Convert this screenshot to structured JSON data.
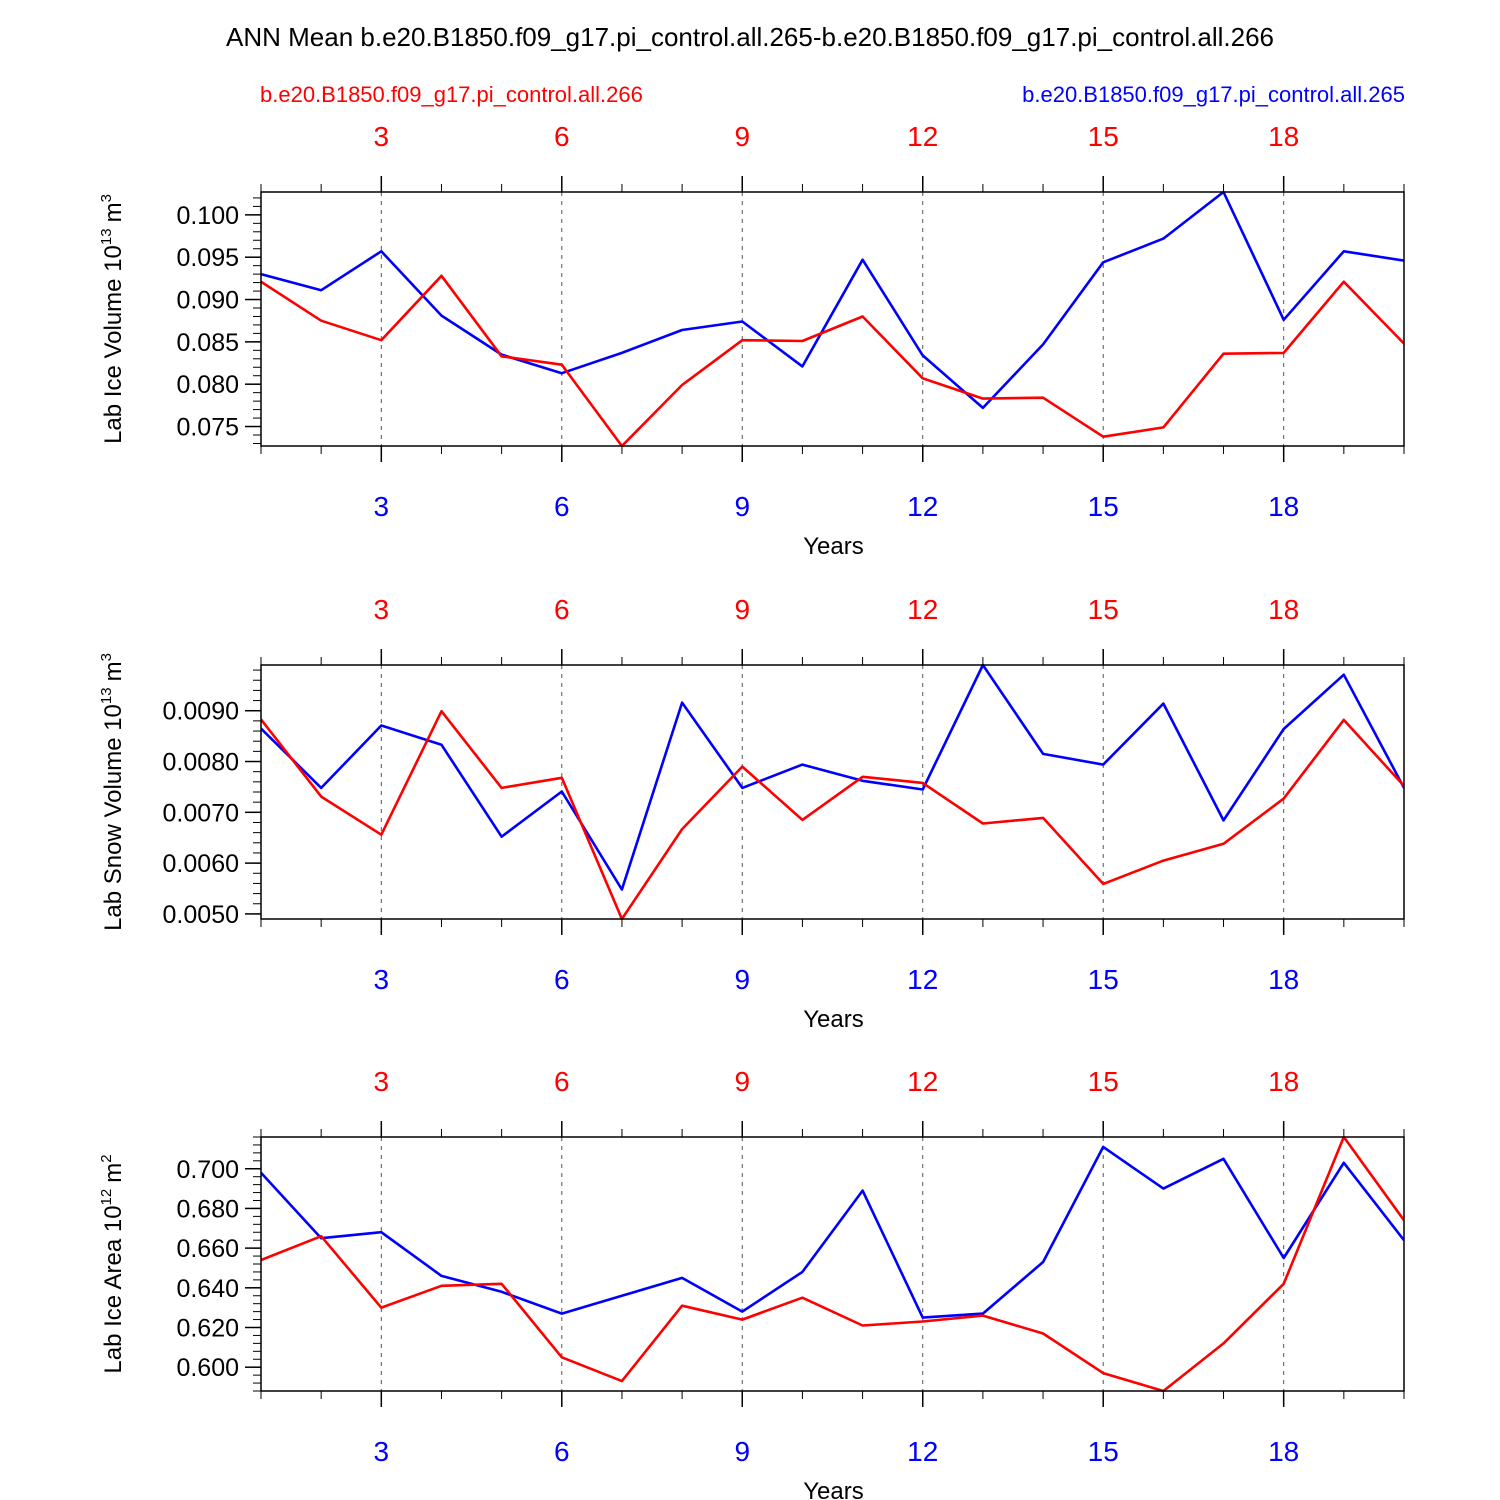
{
  "figure": {
    "title": "ANN Mean b.e20.B1850.f09_g17.pi_control.all.265-b.e20.B1850.f09_g17.pi_control.all.266",
    "legend_left": "b.e20.B1850.f09_g17.pi_control.all.266",
    "legend_right": "b.e20.B1850.f09_g17.pi_control.all.265",
    "colors": {
      "red_series": "#ff0000",
      "blue_series": "#0000ff",
      "frame": "#000000",
      "grid": "#555555"
    }
  },
  "chart_data": [
    {
      "type": "line",
      "ylabel_main": "Lab Ice Volume 10",
      "ylabel_exp": "13",
      "ylabel_unit": "m",
      "ylabel_unit_exp": "3",
      "xlabel": "Years",
      "xlim": [
        1,
        20
      ],
      "ylim": [
        0.0727,
        0.1027
      ],
      "yticks": [
        0.075,
        0.08,
        0.085,
        0.09,
        0.095,
        0.1
      ],
      "yticklabels": [
        "0.075",
        "0.080",
        "0.085",
        "0.090",
        "0.095",
        "0.100"
      ],
      "yminor_step": 0.001,
      "xticks": [
        3,
        6,
        9,
        12,
        15,
        18
      ],
      "xticklabels": [
        "3",
        "6",
        "9",
        "12",
        "15",
        "18"
      ],
      "grid": "vertical-dashed",
      "x": [
        1,
        2,
        3,
        4,
        5,
        6,
        7,
        8,
        9,
        10,
        11,
        12,
        13,
        14,
        15,
        16,
        17,
        18,
        19,
        20
      ],
      "series": [
        {
          "color": "#0000ff",
          "values": [
            0.093,
            0.0911,
            0.0957,
            0.0881,
            0.0835,
            0.0813,
            0.0837,
            0.0864,
            0.0874,
            0.0821,
            0.0947,
            0.0834,
            0.0772,
            0.0847,
            0.0944,
            0.0972,
            0.1027,
            0.0876,
            0.0957,
            0.0946
          ]
        },
        {
          "color": "#ff0000",
          "values": [
            0.0921,
            0.0875,
            0.0852,
            0.0928,
            0.0833,
            0.0823,
            0.0727,
            0.0799,
            0.0852,
            0.0851,
            0.088,
            0.0807,
            0.0783,
            0.0784,
            0.0738,
            0.0749,
            0.0836,
            0.0837,
            0.0921,
            0.0848
          ]
        }
      ]
    },
    {
      "type": "line",
      "ylabel_main": "Lab Snow Volume 10",
      "ylabel_exp": "13",
      "ylabel_unit": "m",
      "ylabel_unit_exp": "3",
      "xlabel": "Years",
      "xlim": [
        1,
        20
      ],
      "ylim": [
        0.0049,
        0.0099
      ],
      "yticks": [
        0.005,
        0.006,
        0.007,
        0.008,
        0.009
      ],
      "yticklabels": [
        "0.0050",
        "0.0060",
        "0.0070",
        "0.0080",
        "0.0090"
      ],
      "yminor_step": 0.0002,
      "xticks": [
        3,
        6,
        9,
        12,
        15,
        18
      ],
      "xticklabels": [
        "3",
        "6",
        "9",
        "12",
        "15",
        "18"
      ],
      "grid": "vertical-dashed",
      "x": [
        1,
        2,
        3,
        4,
        5,
        6,
        7,
        8,
        9,
        10,
        11,
        12,
        13,
        14,
        15,
        16,
        17,
        18,
        19,
        20
      ],
      "series": [
        {
          "color": "#0000ff",
          "values": [
            0.00865,
            0.00748,
            0.00871,
            0.00833,
            0.00652,
            0.00741,
            0.00548,
            0.00916,
            0.00748,
            0.00794,
            0.00762,
            0.00745,
            0.0099,
            0.00815,
            0.00794,
            0.00914,
            0.00684,
            0.00864,
            0.00971,
            0.00748
          ]
        },
        {
          "color": "#ff0000",
          "values": [
            0.00883,
            0.00731,
            0.00656,
            0.00899,
            0.00748,
            0.00768,
            0.0049,
            0.00667,
            0.0079,
            0.00685,
            0.0077,
            0.00758,
            0.00678,
            0.00689,
            0.00559,
            0.00605,
            0.00638,
            0.00727,
            0.00882,
            0.00752
          ]
        }
      ]
    },
    {
      "type": "line",
      "ylabel_main": "Lab Ice Area 10",
      "ylabel_exp": "12",
      "ylabel_unit": "m",
      "ylabel_unit_exp": "2",
      "xlabel": "Years",
      "xlim": [
        1,
        20
      ],
      "ylim": [
        0.588,
        0.716
      ],
      "yticks": [
        0.6,
        0.62,
        0.64,
        0.66,
        0.68,
        0.7
      ],
      "yticklabels": [
        "0.600",
        "0.620",
        "0.640",
        "0.660",
        "0.680",
        "0.700"
      ],
      "yminor_step": 0.004,
      "xticks": [
        3,
        6,
        9,
        12,
        15,
        18
      ],
      "xticklabels": [
        "3",
        "6",
        "9",
        "12",
        "15",
        "18"
      ],
      "grid": "vertical-dashed",
      "x": [
        1,
        2,
        3,
        4,
        5,
        6,
        7,
        8,
        9,
        10,
        11,
        12,
        13,
        14,
        15,
        16,
        17,
        18,
        19,
        20
      ],
      "series": [
        {
          "color": "#0000ff",
          "values": [
            0.698,
            0.665,
            0.668,
            0.646,
            0.638,
            0.627,
            0.636,
            0.645,
            0.628,
            0.648,
            0.689,
            0.625,
            0.627,
            0.653,
            0.711,
            0.69,
            0.705,
            0.655,
            0.703,
            0.664
          ]
        },
        {
          "color": "#ff0000",
          "values": [
            0.654,
            0.666,
            0.63,
            0.641,
            0.642,
            0.605,
            0.593,
            0.631,
            0.624,
            0.635,
            0.621,
            0.623,
            0.626,
            0.617,
            0.597,
            0.588,
            0.612,
            0.642,
            0.716,
            0.674
          ]
        }
      ]
    }
  ]
}
